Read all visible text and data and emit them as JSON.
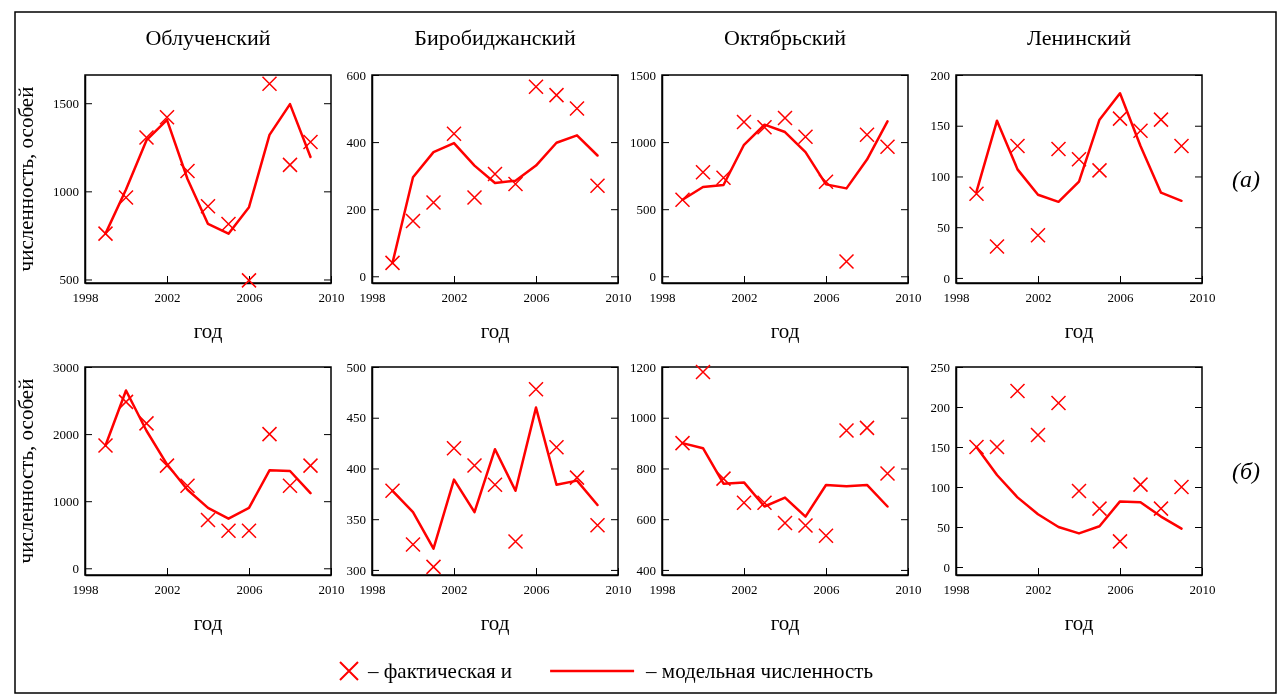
{
  "chart_data": [
    {
      "type": "line",
      "title": "Облученский",
      "xlabel": "год",
      "ylabel": "численность, особей",
      "xlim": [
        1998,
        2010
      ],
      "xticks": [
        1998,
        2002,
        2006,
        2010
      ],
      "ylim": [
        480,
        1660
      ],
      "yticks": [
        500,
        1000,
        1500
      ],
      "x": [
        1999,
        2000,
        2001,
        2002,
        2003,
        2004,
        2005,
        2006,
        2007,
        2008,
        2009
      ],
      "legend": "bottom",
      "series": [
        {
          "name": "– фактическая и",
          "type": "scatter",
          "marker": "cross",
          "color": "#ff0000",
          "values": [
            760,
            965,
            1305,
            1420,
            1115,
            915,
            815,
            495,
            1610,
            1150,
            1280
          ]
        },
        {
          "name": "– модельная численность",
          "type": "line",
          "marker": "none",
          "color": "#ff0000",
          "values": [
            760,
            1010,
            1290,
            1405,
            1070,
            815,
            760,
            910,
            1320,
            1495,
            1195
          ]
        }
      ]
    },
    {
      "type": "line",
      "title": "Биробиджанский",
      "xlabel": "год",
      "xlim": [
        1998,
        2010
      ],
      "xticks": [
        1998,
        2002,
        2006,
        2010
      ],
      "ylim": [
        -20,
        600
      ],
      "yticks": [
        0,
        200,
        400,
        600
      ],
      "x": [
        1999,
        2000,
        2001,
        2002,
        2003,
        2004,
        2005,
        2006,
        2007,
        2008,
        2009
      ],
      "series": [
        {
          "type": "scatter",
          "marker": "cross",
          "color": "#ff0000",
          "values": [
            40,
            165,
            220,
            425,
            235,
            305,
            275,
            565,
            540,
            500,
            270
          ]
        },
        {
          "type": "line",
          "marker": "none",
          "color": "#ff0000",
          "values": [
            40,
            295,
            370,
            397,
            330,
            278,
            285,
            330,
            398,
            420,
            360
          ]
        }
      ]
    },
    {
      "type": "line",
      "title": "Октябрьский",
      "xlabel": "год",
      "xlim": [
        1998,
        2010
      ],
      "xticks": [
        1998,
        2002,
        2006,
        2010
      ],
      "ylim": [
        -50,
        1500
      ],
      "yticks": [
        0,
        500,
        1000,
        1500
      ],
      "x": [
        1999,
        2000,
        2001,
        2002,
        2003,
        2004,
        2005,
        2006,
        2007,
        2008,
        2009
      ],
      "series": [
        {
          "type": "scatter",
          "marker": "cross",
          "color": "#ff0000",
          "values": [
            570,
            775,
            735,
            1150,
            1110,
            1180,
            1040,
            705,
            110,
            1055,
            965
          ]
        },
        {
          "type": "line",
          "marker": "none",
          "color": "#ff0000",
          "values": [
            570,
            665,
            680,
            980,
            1130,
            1075,
            925,
            685,
            655,
            870,
            1155
          ]
        }
      ]
    },
    {
      "type": "line",
      "title": "Ленинский",
      "xlabel": "год",
      "xlim": [
        1998,
        2010
      ],
      "xticks": [
        1998,
        2002,
        2006,
        2010
      ],
      "ylim": [
        -5,
        200
      ],
      "yticks": [
        0,
        50,
        100,
        150,
        200
      ],
      "x": [
        1999,
        2000,
        2001,
        2002,
        2003,
        2004,
        2005,
        2006,
        2007,
        2008,
        2009
      ],
      "annotations": [
        "(а)"
      ],
      "series": [
        {
          "type": "scatter",
          "marker": "cross",
          "color": "#ff0000",
          "values": [
            83,
            31,
            130,
            42,
            127,
            117,
            106,
            157,
            145,
            156,
            130
          ]
        },
        {
          "type": "line",
          "marker": "none",
          "color": "#ff0000",
          "values": [
            85,
            155,
            107,
            82,
            75,
            95,
            156,
            182,
            130,
            84,
            76
          ]
        }
      ]
    },
    {
      "type": "line",
      "xlabel": "год",
      "ylabel": "численность, особей",
      "xlim": [
        1998,
        2010
      ],
      "xticks": [
        1998,
        2002,
        2006,
        2010
      ],
      "ylim": [
        -100,
        3000
      ],
      "yticks": [
        0,
        1000,
        2000,
        3000
      ],
      "x": [
        1999,
        2000,
        2001,
        2002,
        2003,
        2004,
        2005,
        2006,
        2007,
        2008,
        2009
      ],
      "series": [
        {
          "type": "scatter",
          "marker": "cross",
          "color": "#ff0000",
          "values": [
            1830,
            2480,
            2160,
            1530,
            1230,
            720,
            560,
            560,
            2000,
            1230,
            1530
          ]
        },
        {
          "type": "line",
          "marker": "none",
          "color": "#ff0000",
          "values": [
            1830,
            2650,
            2050,
            1550,
            1170,
            900,
            740,
            900,
            1460,
            1450,
            1120
          ]
        }
      ]
    },
    {
      "type": "line",
      "xlabel": "год",
      "xlim": [
        1998,
        2010
      ],
      "xticks": [
        1998,
        2002,
        2006,
        2010
      ],
      "ylim": [
        295,
        500
      ],
      "yticks": [
        300,
        350,
        400,
        450,
        500
      ],
      "x": [
        1999,
        2000,
        2001,
        2002,
        2003,
        2004,
        2005,
        2006,
        2007,
        2008,
        2009
      ],
      "series": [
        {
          "type": "scatter",
          "marker": "cross",
          "color": "#ff0000",
          "values": [
            378,
            325,
            303,
            420,
            403,
            384,
            328,
            478,
            421,
            391,
            344
          ]
        },
        {
          "type": "line",
          "marker": "none",
          "color": "#ff0000",
          "values": [
            378,
            357,
            321,
            389,
            357,
            419,
            378,
            460,
            384,
            388,
            364
          ]
        }
      ]
    },
    {
      "type": "line",
      "xlabel": "год",
      "xlim": [
        1998,
        2010
      ],
      "xticks": [
        1998,
        2002,
        2006,
        2010
      ],
      "ylim": [
        380,
        1200
      ],
      "yticks": [
        400,
        600,
        800,
        1000,
        1200
      ],
      "x": [
        1999,
        2000,
        2001,
        2002,
        2003,
        2004,
        2005,
        2006,
        2007,
        2008,
        2009
      ],
      "series": [
        {
          "type": "scatter",
          "marker": "cross",
          "color": "#ff0000",
          "values": [
            900,
            1180,
            760,
            665,
            665,
            585,
            575,
            535,
            950,
            960,
            780
          ]
        },
        {
          "type": "line",
          "marker": "none",
          "color": "#ff0000",
          "values": [
            900,
            880,
            740,
            745,
            650,
            685,
            610,
            735,
            730,
            735,
            650
          ]
        }
      ]
    },
    {
      "type": "line",
      "xlabel": "год",
      "xlim": [
        1998,
        2010
      ],
      "xticks": [
        1998,
        2002,
        2006,
        2010
      ],
      "ylim": [
        -10,
        250
      ],
      "yticks": [
        0,
        50,
        100,
        150,
        200,
        250
      ],
      "x": [
        1999,
        2000,
        2001,
        2002,
        2003,
        2004,
        2005,
        2006,
        2007,
        2008,
        2009
      ],
      "annotations": [
        "(б)"
      ],
      "series": [
        {
          "type": "scatter",
          "marker": "cross",
          "color": "#ff0000",
          "values": [
            150,
            150,
            220,
            165,
            205,
            95,
            73,
            32,
            103,
            73,
            100
          ]
        },
        {
          "type": "line",
          "marker": "none",
          "color": "#ff0000",
          "values": [
            150,
            115,
            87,
            66,
            50,
            42,
            51,
            82,
            81,
            63,
            48
          ]
        }
      ]
    }
  ]
}
